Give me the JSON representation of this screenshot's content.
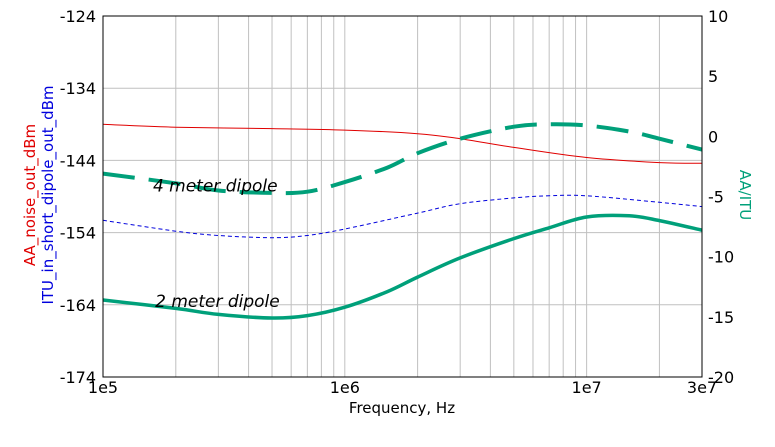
{
  "chart_data": {
    "type": "line",
    "xlabel": "Frequency, Hz",
    "ylabel_left": [
      "AA_noise_out_dBm",
      "ITU_in_short_dipole_out_dBm"
    ],
    "ylabel_right": "AA/ITU",
    "x_scale": "log",
    "xlim": [
      100000,
      30000000
    ],
    "ylim_left": [
      -174,
      -124
    ],
    "ylim_right": [
      -20,
      10
    ],
    "x_ticks": [
      {
        "value": 100000,
        "label": "1e5"
      },
      {
        "value": 1000000,
        "label": "1e6"
      },
      {
        "value": 10000000,
        "label": "1e7"
      },
      {
        "value": 30000000,
        "label": "3e7"
      }
    ],
    "left_ticks": [
      {
        "value": -124,
        "label": "-124"
      },
      {
        "value": -134,
        "label": "-134"
      },
      {
        "value": -144,
        "label": "-144"
      },
      {
        "value": -154,
        "label": "-154"
      },
      {
        "value": -164,
        "label": "-164"
      },
      {
        "value": -174,
        "label": "-174"
      }
    ],
    "right_ticks": [
      {
        "value": 10,
        "label": "10"
      },
      {
        "value": 5,
        "label": "5"
      },
      {
        "value": 0,
        "label": "0"
      },
      {
        "value": -5,
        "label": "-5"
      },
      {
        "value": -10,
        "label": "-10"
      },
      {
        "value": -15,
        "label": "-15"
      },
      {
        "value": -20,
        "label": "-20"
      }
    ],
    "grid": true,
    "series": [
      {
        "axis": "left",
        "color": "#e00000",
        "style": "solid-thin",
        "x": [
          100000,
          200000,
          500000,
          1000000,
          2000000,
          3000000,
          5000000,
          10000000,
          20000000,
          30000000
        ],
        "y": [
          -139,
          -139.4,
          -139.6,
          -139.8,
          -140.3,
          -141,
          -142.2,
          -143.6,
          -144.3,
          -144.4
        ]
      },
      {
        "axis": "left",
        "color": "#0000dd",
        "style": "dashed-thin",
        "x": [
          100000,
          200000,
          300000,
          500000,
          700000,
          1000000,
          2000000,
          3000000,
          5000000,
          7000000,
          10000000,
          20000000,
          30000000
        ],
        "y": [
          -152.3,
          -153.8,
          -154.4,
          -154.7,
          -154.4,
          -153.5,
          -151.3,
          -150,
          -149.2,
          -148.9,
          -148.9,
          -149.8,
          -150.4
        ]
      },
      {
        "axis": "right",
        "color": "#00a07a",
        "style": "dashed-thick",
        "x": [
          100000,
          200000,
          300000,
          500000,
          700000,
          1000000,
          1500000,
          2000000,
          3000000,
          5000000,
          7000000,
          10000000,
          15000000,
          20000000,
          30000000
        ],
        "y": [
          -3.1,
          -3.9,
          -4.5,
          -4.7,
          -4.6,
          -3.8,
          -2.6,
          -1.4,
          -0.2,
          0.8,
          1,
          0.9,
          0.4,
          -0.2,
          -1.1
        ]
      },
      {
        "axis": "right",
        "color": "#00a07a",
        "style": "solid-thick",
        "x": [
          100000,
          200000,
          300000,
          500000,
          700000,
          1000000,
          1500000,
          2000000,
          3000000,
          5000000,
          7000000,
          10000000,
          15000000,
          20000000,
          30000000
        ],
        "y": [
          -13.6,
          -14.3,
          -14.8,
          -15.1,
          -14.9,
          -14.2,
          -12.9,
          -11.7,
          -10.1,
          -8.5,
          -7.6,
          -6.7,
          -6.6,
          -7,
          -7.8
        ]
      }
    ],
    "annotations": [
      {
        "text": "4 meter dipole",
        "x": 240000,
        "y_left": -147.5
      },
      {
        "text": "2 meter dipole",
        "x": 245000,
        "y_left": -163.5
      }
    ]
  }
}
